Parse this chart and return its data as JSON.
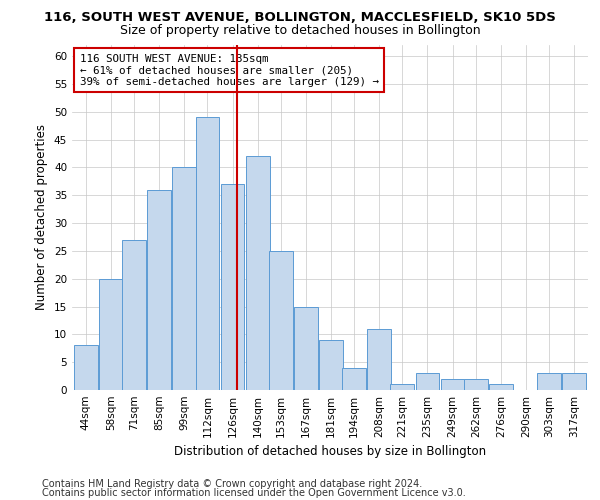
{
  "title": "116, SOUTH WEST AVENUE, BOLLINGTON, MACCLESFIELD, SK10 5DS",
  "subtitle": "Size of property relative to detached houses in Bollington",
  "xlabel": "Distribution of detached houses by size in Bollington",
  "ylabel": "Number of detached properties",
  "categories": [
    "44sqm",
    "58sqm",
    "71sqm",
    "85sqm",
    "99sqm",
    "112sqm",
    "126sqm",
    "140sqm",
    "153sqm",
    "167sqm",
    "181sqm",
    "194sqm",
    "208sqm",
    "221sqm",
    "235sqm",
    "249sqm",
    "262sqm",
    "276sqm",
    "290sqm",
    "303sqm",
    "317sqm"
  ],
  "values": [
    8,
    20,
    27,
    36,
    40,
    49,
    37,
    42,
    25,
    15,
    9,
    4,
    11,
    1,
    3,
    2,
    2,
    1,
    0,
    3,
    3
  ],
  "bar_color": "#c5d8ed",
  "bar_edge_color": "#5b9bd5",
  "vline_x": 135,
  "vline_color": "#cc0000",
  "annotation_text": "116 SOUTH WEST AVENUE: 135sqm\n← 61% of detached houses are smaller (205)\n39% of semi-detached houses are larger (129) →",
  "annotation_box_color": "#ffffff",
  "annotation_box_edge": "#cc0000",
  "ylim": [
    0,
    62
  ],
  "yticks": [
    0,
    5,
    10,
    15,
    20,
    25,
    30,
    35,
    40,
    45,
    50,
    55,
    60
  ],
  "footer_line1": "Contains HM Land Registry data © Crown copyright and database right 2024.",
  "footer_line2": "Contains public sector information licensed under the Open Government Licence v3.0.",
  "title_fontsize": 9.5,
  "subtitle_fontsize": 9,
  "axis_label_fontsize": 8.5,
  "tick_fontsize": 7.5,
  "footer_fontsize": 7,
  "bin_width": 13.5,
  "bar_starts": [
    44,
    58,
    71,
    85,
    99,
    112,
    126,
    140,
    153,
    167,
    181,
    194,
    208,
    221,
    235,
    249,
    262,
    276,
    290,
    303,
    317
  ]
}
